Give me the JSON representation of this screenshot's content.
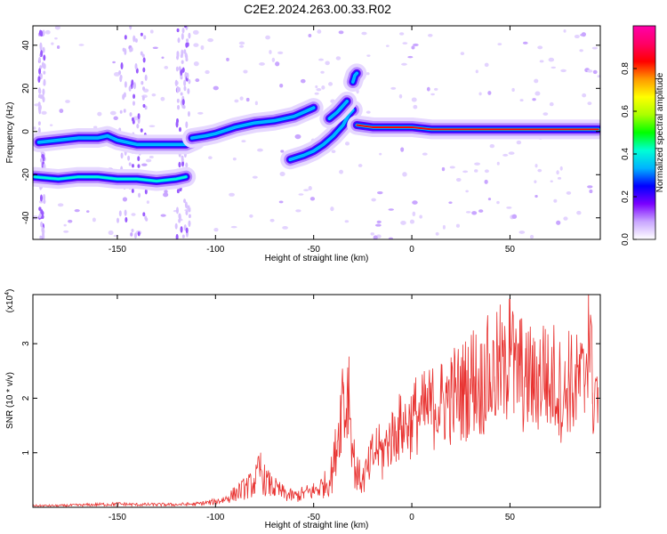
{
  "title": "C2E2.2024.263.00.33.R02",
  "chart_data": [
    {
      "type": "heatmap",
      "xlabel": "Height of straight line (km)",
      "ylabel": "Frequency (Hz)",
      "xlim": [
        -193,
        96
      ],
      "ylim": [
        -50,
        49
      ],
      "xticks": [
        -150,
        -100,
        -50,
        0,
        50
      ],
      "yticks": [
        -40,
        -20,
        0,
        20,
        40
      ],
      "colorbar": {
        "label": "Normalized spectral amplitude",
        "range": [
          0,
          1
        ],
        "ticks": [
          "0.0",
          "0.2",
          "0.4",
          "0.6",
          "0.8"
        ],
        "colors": [
          "#ffffff",
          "#c9a6ff",
          "#7a00ff",
          "#0000ff",
          "#00b3ff",
          "#00ffd5",
          "#00ff00",
          "#aaff00",
          "#ffff00",
          "#ff9900",
          "#ff0000",
          "#ff0066",
          "#ff00aa"
        ]
      },
      "tracks": [
        {
          "x": [
            -190,
            -180,
            -170,
            -160,
            -155,
            -150,
            -140,
            -135,
            -125,
            -115,
            -110
          ],
          "y": [
            -5,
            -4,
            -3,
            -3,
            -2,
            -4,
            -6,
            -6,
            -6,
            -6,
            -4
          ],
          "amplitude": 0.3
        },
        {
          "x": [
            -192,
            -180,
            -170,
            -160,
            -150,
            -140,
            -130,
            -120,
            -115
          ],
          "y": [
            -21,
            -22,
            -21,
            -21,
            -22,
            -22,
            -23,
            -22,
            -21
          ],
          "amplitude": 0.4
        },
        {
          "x": [
            -112,
            -105,
            -100,
            -90,
            -80,
            -70,
            -60,
            -55,
            -50
          ],
          "y": [
            -3,
            -2,
            -1,
            2,
            4,
            5,
            7,
            9,
            11
          ],
          "amplitude": 0.35
        },
        {
          "x": [
            -62,
            -55,
            -50,
            -45,
            -40,
            -35,
            -32,
            -30
          ],
          "y": [
            -13,
            -11,
            -9,
            -6,
            -2,
            3,
            8,
            10
          ],
          "amplitude": 0.35
        },
        {
          "x": [
            -42,
            -38,
            -35,
            -33
          ],
          "y": [
            6,
            9,
            12,
            14
          ],
          "amplitude": 0.3
        },
        {
          "x": [
            -30,
            -29,
            -28
          ],
          "y": [
            23,
            26,
            27
          ],
          "amplitude": 0.3
        },
        {
          "x": [
            -28,
            -20,
            -10,
            0,
            10,
            20,
            30,
            40,
            50,
            60,
            70,
            80,
            90,
            95
          ],
          "y": [
            3,
            2,
            2,
            2,
            1,
            1,
            1,
            1,
            1,
            1,
            1,
            1,
            1,
            1
          ],
          "amplitude": 0.85
        }
      ]
    },
    {
      "type": "line",
      "xlabel": "Height of straight line (km)",
      "ylabel": "SNR (10 * v/v)",
      "y_multiplier": "(x10^4)",
      "xlim": [
        -193,
        96
      ],
      "ylim": [
        0,
        3.9
      ],
      "xticks": [
        -150,
        -100,
        -50,
        0,
        50
      ],
      "yticks": [
        1,
        2,
        3
      ],
      "color": "#e8312f",
      "x": [
        -193,
        -180,
        -170,
        -160,
        -150,
        -140,
        -130,
        -120,
        -110,
        -100,
        -95,
        -90,
        -85,
        -80,
        -77,
        -75,
        -72,
        -70,
        -65,
        -60,
        -55,
        -50,
        -45,
        -42,
        -40,
        -38,
        -36,
        -35,
        -34,
        -33,
        -32,
        -31,
        -30,
        -28,
        -25,
        -22,
        -20,
        -18,
        -15,
        -12,
        -10,
        -8,
        -5,
        -2,
        0,
        2,
        5,
        8,
        10,
        12,
        15,
        18,
        20,
        22,
        25,
        28,
        30,
        32,
        35,
        38,
        40,
        42,
        45,
        48,
        50,
        52,
        55,
        58,
        60,
        62,
        65,
        68,
        70,
        72,
        75,
        78,
        80,
        82,
        85,
        88,
        90,
        92,
        95
      ],
      "y": [
        0.03,
        0.03,
        0.04,
        0.05,
        0.06,
        0.05,
        0.05,
        0.05,
        0.06,
        0.1,
        0.15,
        0.25,
        0.35,
        0.45,
        0.7,
        0.5,
        0.4,
        0.35,
        0.25,
        0.2,
        0.25,
        0.3,
        0.4,
        0.5,
        0.7,
        1.2,
        1.8,
        2.3,
        1.6,
        2.0,
        2.3,
        1.5,
        1.0,
        0.6,
        0.5,
        0.7,
        0.9,
        1.1,
        1.0,
        1.2,
        1.3,
        1.4,
        1.5,
        1.5,
        1.6,
        1.7,
        1.7,
        1.8,
        1.8,
        1.9,
        1.9,
        2.0,
        2.0,
        2.1,
        2.1,
        2.2,
        2.3,
        2.4,
        2.2,
        2.5,
        2.3,
        2.4,
        2.6,
        2.3,
        3.85,
        2.3,
        2.6,
        2.2,
        2.5,
        2.2,
        2.4,
        2.6,
        2.1,
        2.4,
        2.2,
        2.0,
        2.5,
        2.1,
        2.3,
        2.2,
        3.7,
        2.1,
        2.2
      ]
    }
  ]
}
